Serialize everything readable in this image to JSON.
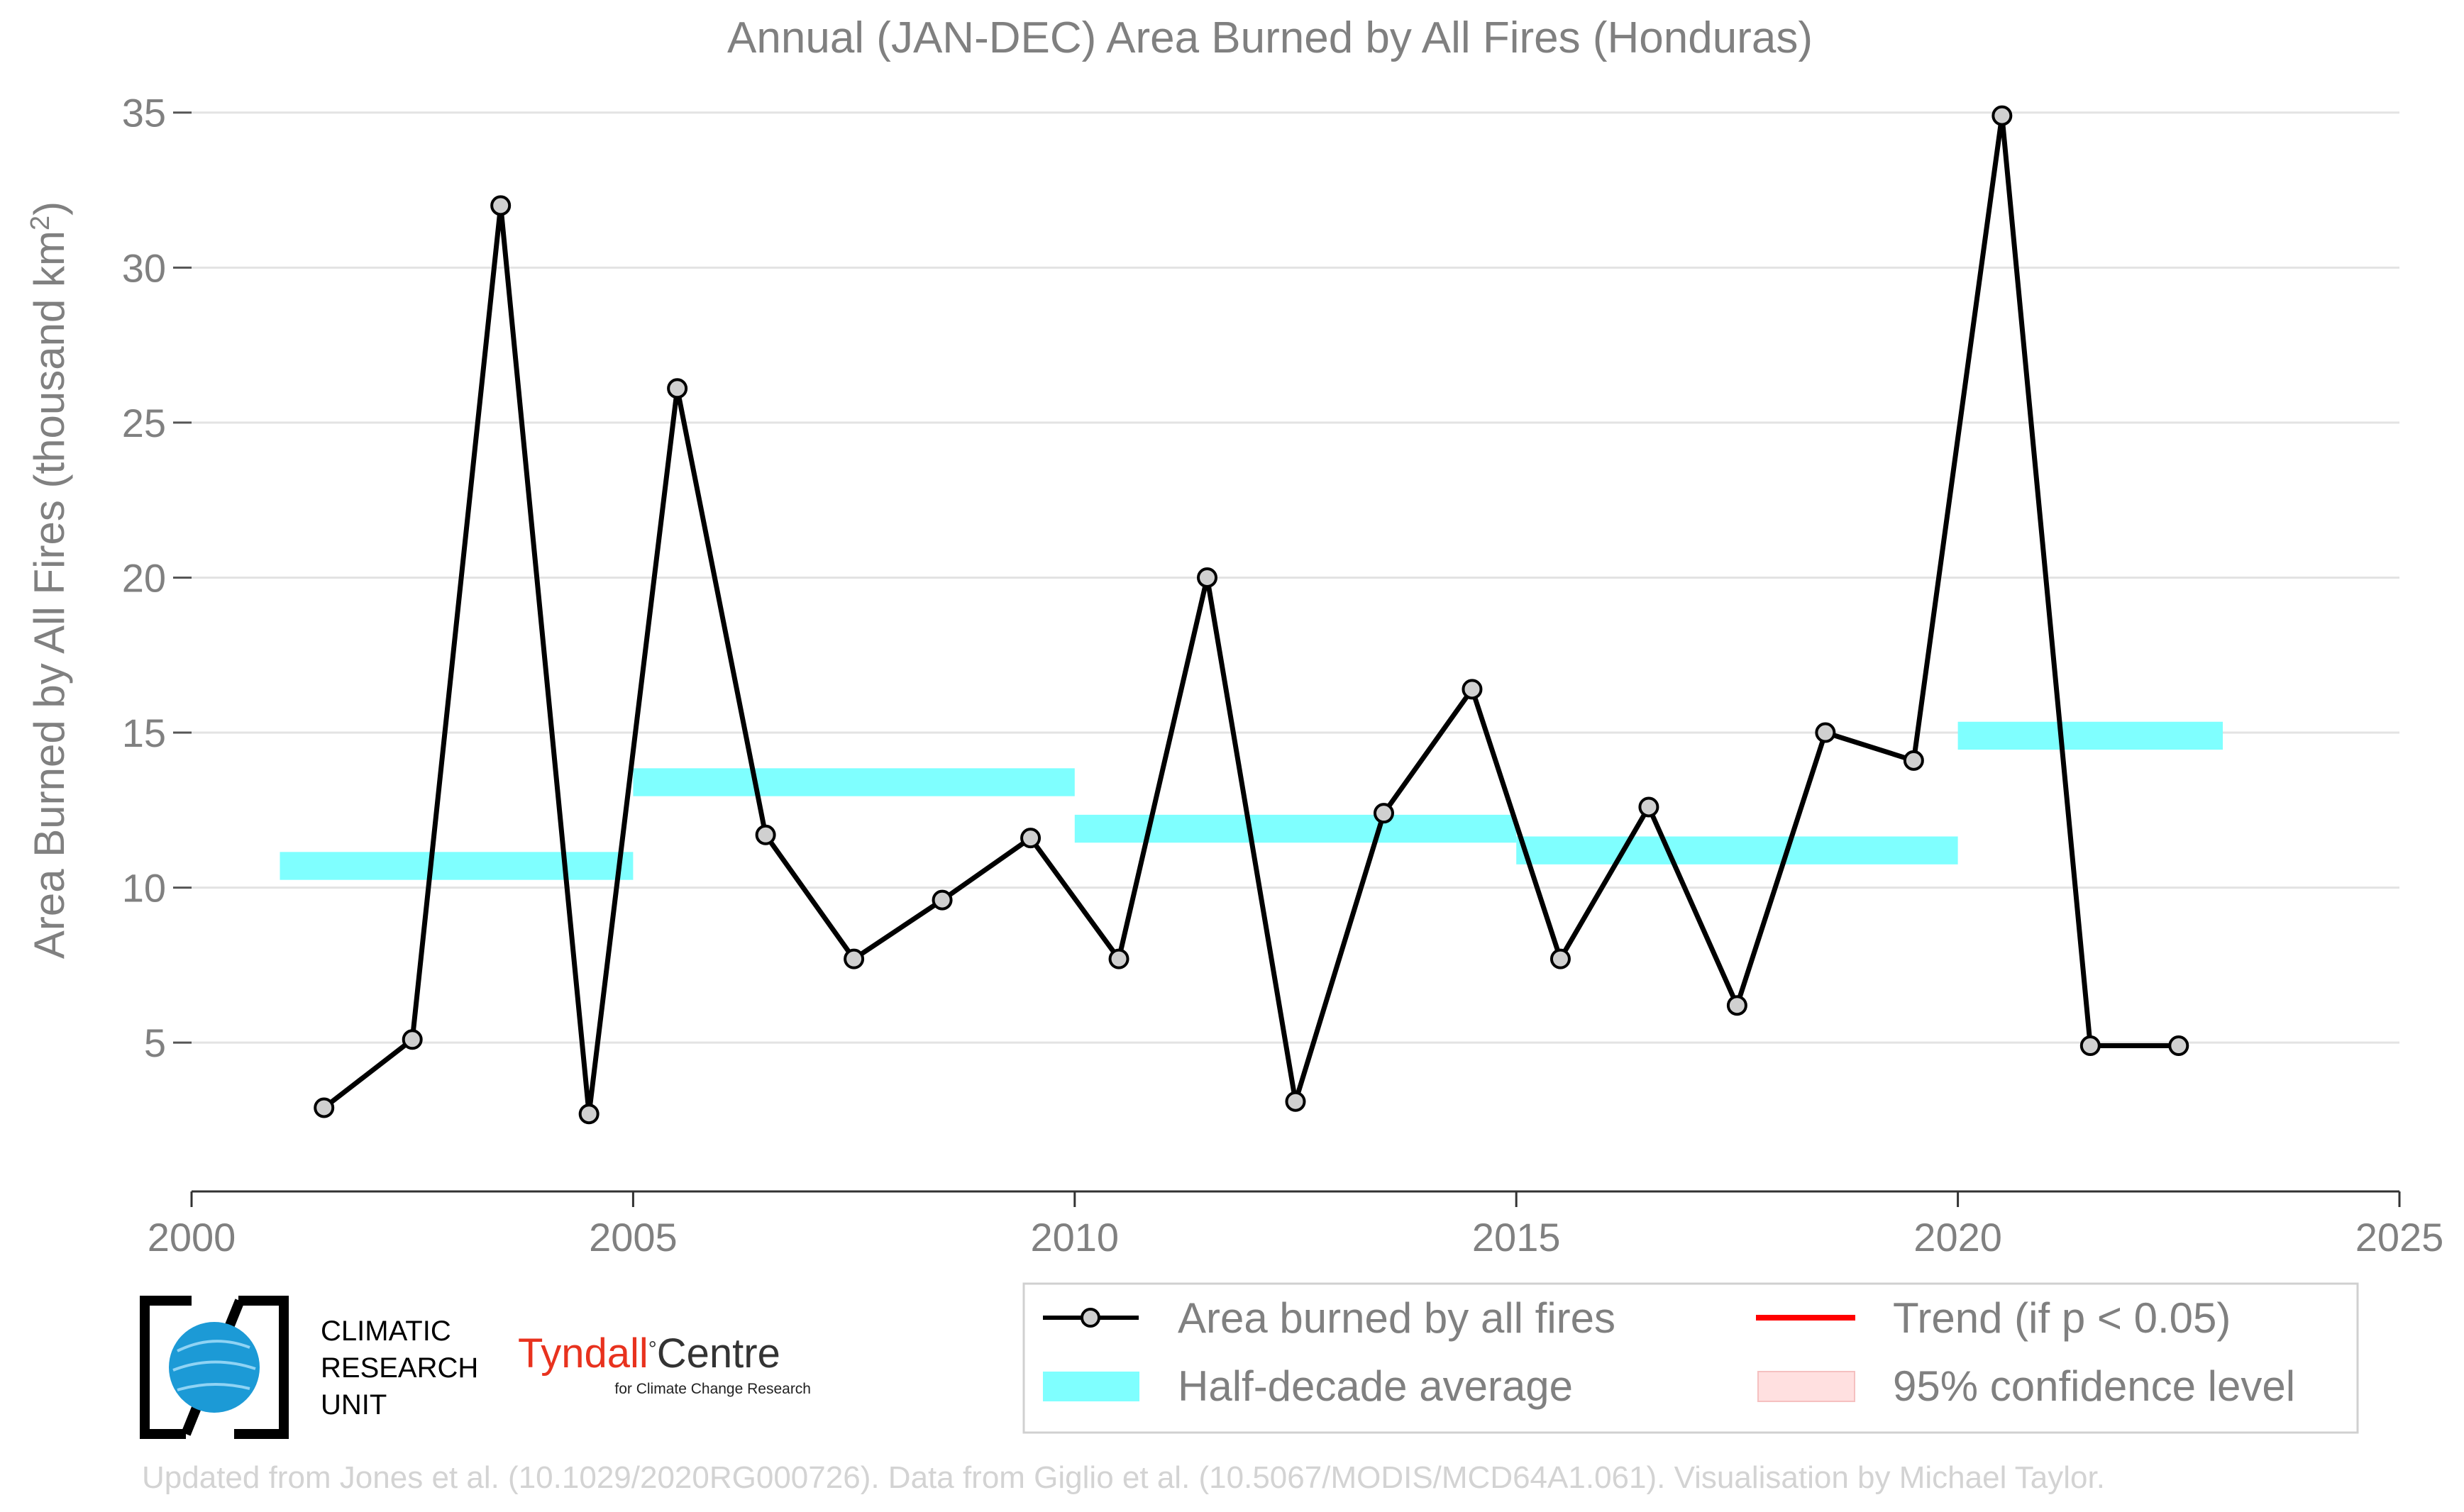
{
  "chart_data": {
    "type": "line",
    "title": "Annual (JAN-DEC) Area Burned by All Fires (Honduras)",
    "xlabel": "",
    "ylabel": "Area Burned by All Fires (thousand km",
    "ylabel_sup": "2",
    "ylabel_close": ")",
    "xlim": [
      2000,
      2025
    ],
    "ylim": [
      0.2,
      35.2
    ],
    "x_ticks": [
      "2000",
      "2005",
      "2010",
      "2015",
      "2020",
      "2025"
    ],
    "y_ticks": [
      "5",
      "10",
      "15",
      "20",
      "25",
      "30",
      "35"
    ],
    "grid": "horizontal",
    "series": [
      {
        "name": "Area burned by all fires",
        "color": "#000000",
        "marker_fill": "#d0d0d0",
        "x": [
          2001.5,
          2002.5,
          2003.5,
          2004.5,
          2005.5,
          2006.5,
          2007.5,
          2008.5,
          2009.5,
          2010.5,
          2011.5,
          2012.5,
          2013.5,
          2014.5,
          2015.5,
          2016.5,
          2017.5,
          2018.5,
          2019.5,
          2020.5,
          2021.5,
          2022.5
        ],
        "values": [
          2.9,
          5.1,
          32.0,
          2.7,
          26.1,
          11.7,
          7.7,
          9.6,
          11.6,
          7.7,
          20.0,
          3.1,
          12.4,
          16.4,
          7.7,
          12.6,
          6.2,
          15.0,
          14.1,
          34.9,
          4.9,
          4.9
        ]
      }
    ],
    "half_decade_average": {
      "name": "Half-decade average",
      "color": "#7fffff",
      "segments": [
        {
          "x_start": 2001,
          "x_end": 2005,
          "value": 10.7
        },
        {
          "x_start": 2005,
          "x_end": 2010,
          "value": 13.4
        },
        {
          "x_start": 2010,
          "x_end": 2015,
          "value": 11.9
        },
        {
          "x_start": 2015,
          "x_end": 2020,
          "value": 11.2
        },
        {
          "x_start": 2020,
          "x_end": 2023,
          "value": 14.9
        }
      ]
    },
    "legend": {
      "placement": "bottom-right",
      "entries": [
        {
          "label": "Area burned by all fires",
          "kind": "line-marker",
          "color": "#000000"
        },
        {
          "label": "Trend (if p < 0.05)",
          "kind": "line",
          "color": "#ff0000"
        },
        {
          "label": "Half-decade average",
          "kind": "band",
          "color": "#7fffff"
        },
        {
          "label": "95% confidence level",
          "kind": "band",
          "color": "#ffe0e0"
        }
      ]
    }
  },
  "logos": {
    "cru": {
      "icon": "globe-bracket-icon",
      "lines": [
        "CLIMATIC",
        "RESEARCH",
        "UNIT"
      ]
    },
    "tyndall": {
      "name_part1": "Tyndall",
      "degree": "°",
      "name_part2": "Centre",
      "subtitle": "for Climate Change Research",
      "accent": "#e8321e"
    }
  },
  "credit": "Updated from Jones et al. (10.1029/2020RG000726). Data from Giglio et al. (10.5067/MODIS/MCD64A1.061). Visualisation by Michael Taylor."
}
